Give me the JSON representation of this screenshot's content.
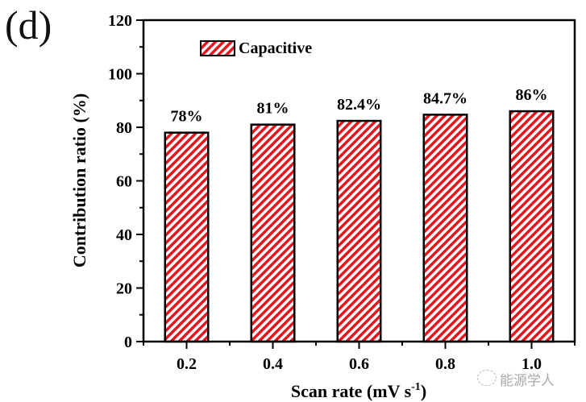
{
  "panel_label": "(d)",
  "watermark": "能源学人",
  "chart_data": {
    "type": "bar",
    "x": [
      0.2,
      0.4,
      0.6,
      0.8,
      1.0
    ],
    "x_tick_labels": [
      "0.2",
      "0.4",
      "0.6",
      "0.8",
      "1.0"
    ],
    "values": [
      78,
      81,
      82.4,
      84.7,
      86
    ],
    "data_labels": [
      "78%",
      "81%",
      "82.4%",
      "84.7%",
      "86%"
    ],
    "series_name": "Capacitive",
    "xlabel": "Scan rate (mV s",
    "xlabel_sup": "-1",
    "xlabel_end": ")",
    "ylabel": "Contribution ratio (%)",
    "xlim": [
      0.1,
      1.1
    ],
    "ylim": [
      0,
      120
    ],
    "y_ticks": [
      0,
      20,
      40,
      60,
      80,
      100,
      120
    ],
    "legend_position": "top-left",
    "grid": false,
    "colors": {
      "hatch": "#e8141c",
      "edge": "#000000"
    }
  }
}
